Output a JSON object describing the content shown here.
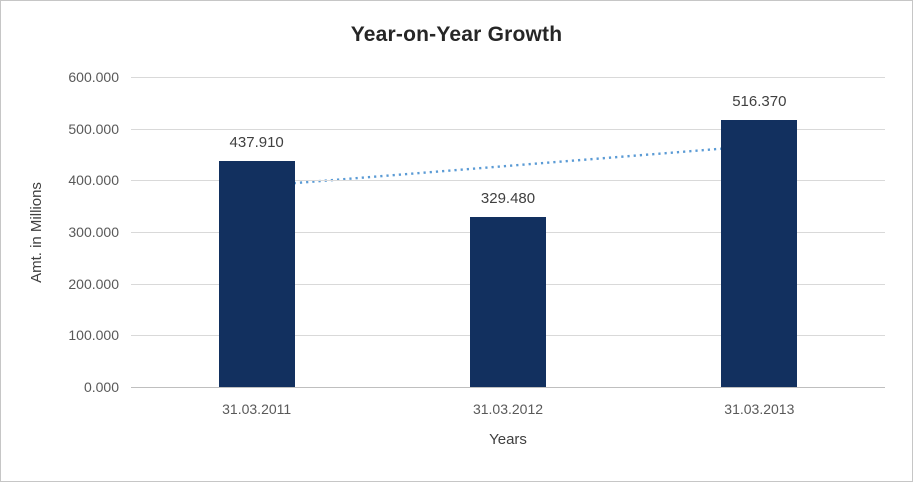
{
  "chart_data": {
    "type": "bar",
    "title": "Year-on-Year Growth",
    "xlabel": "Years",
    "ylabel": "Amt. in Millions",
    "categories": [
      "31.03.2011",
      "31.03.2012",
      "31.03.2013"
    ],
    "values": [
      437.91,
      329.48,
      516.37
    ],
    "value_labels": [
      "437.910",
      "329.480",
      "516.370"
    ],
    "ylim": [
      0,
      600
    ],
    "ytick_step": 100,
    "ytick_labels": [
      "0.000",
      "100.000",
      "200.000",
      "300.000",
      "400.000",
      "500.000",
      "600.000"
    ],
    "grid": true,
    "legend": "none",
    "bar_color": "#12305F",
    "trendline": {
      "style": "dotted",
      "color": "#5B9BD5",
      "start_value": 388.7,
      "end_value": 467.2
    }
  }
}
